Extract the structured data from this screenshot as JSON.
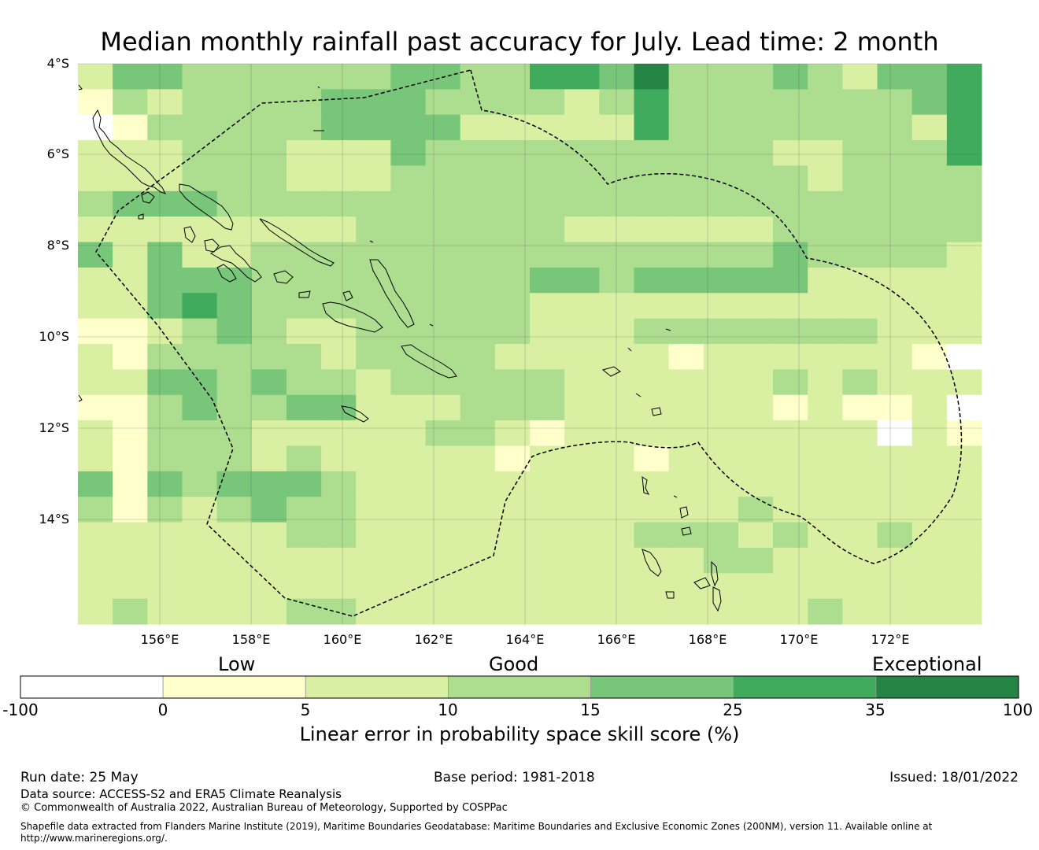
{
  "title": "Median monthly rainfall past accuracy for July. Lead time: 2 month",
  "map": {
    "lat_labels": [
      "4°S",
      "6°S",
      "8°S",
      "10°S",
      "12°S",
      "14°S"
    ],
    "lon_labels": [
      "156°E",
      "158°E",
      "160°E",
      "162°E",
      "164°E",
      "166°E",
      "168°E",
      "170°E",
      "172°E"
    ],
    "grid": [
      "24433333344335546333432445",
      "13233334443333235333333345",
      "01333334444222225333333325",
      "22233322243333333333223335",
      "22233322233333333333323333",
      "34443333333333333333333333",
      "22222222333333222222333333",
      "42422333333333333333433332",
      "22444333333334434444422222",
      "22454333333332222222222222",
      "11234322333332223333333222",
      "21333332333322222122222210",
      "22443433233333222222323222",
      "11343344222333222222121120",
      "21333222223321222222222021",
      "21333232222212221222222222",
      "41434443222222222222222222",
      "31323433222222222223222222",
      "22222233222222223332322322",
      "22222222222222222233222222",
      "22222222222222222222222222",
      "23222233222222222222232222"
    ],
    "palette": [
      "#ffffff",
      "#ffffcc",
      "#d9f0a3",
      "#addd8e",
      "#78c679",
      "#41ab5d",
      "#238443"
    ]
  },
  "legend": {
    "category_labels": [
      "Low",
      "Good",
      "Exceptional"
    ],
    "ticks": [
      "-100",
      "0",
      "5",
      "10",
      "15",
      "25",
      "35",
      "100"
    ],
    "colors": [
      "#ffffff",
      "#ffffcc",
      "#d9f0a3",
      "#addd8e",
      "#78c679",
      "#41ab5d",
      "#238443"
    ],
    "title": "Linear error in probability space skill score (%)"
  },
  "footer": {
    "run_date": "Run date: 25 May",
    "base_period": "Base period: 1981-2018",
    "issued": "Issued: 18/01/2022",
    "data_source": "Data source: ACCESS-S2 and ERA5 Climate Reanalysis",
    "copyright": "© Commonwealth of Australia 2022, Australian Bureau of Meteorology, Supported by COSPPac",
    "shapefile_note": "Shapefile data extracted from Flanders Marine Institute (2019), Maritime Boundaries Geodatabase: Maritime Boundaries and Exclusive Economic Zones (200NM), version 11. Available online at http://www.marineregions.org/."
  }
}
